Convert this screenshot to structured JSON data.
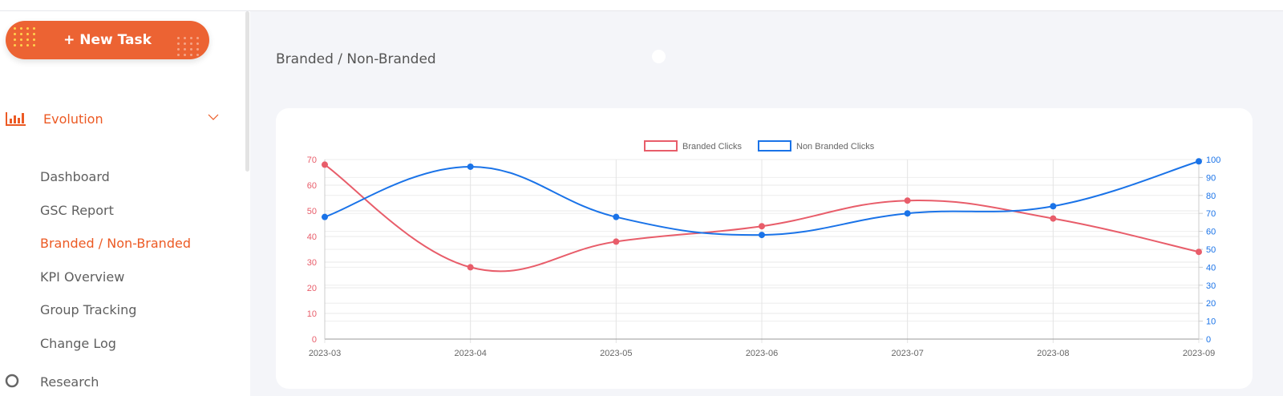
{
  "sidebar": {
    "new_task_label": "+ New Task",
    "section": {
      "label": "Evolution",
      "icon": "bar-chart-icon",
      "expanded": true
    },
    "items": [
      {
        "label": "Dashboard",
        "active": false
      },
      {
        "label": "GSC Report",
        "active": false
      },
      {
        "label": "Branded / Non-Branded",
        "active": true
      },
      {
        "label": "KPI Overview",
        "active": false
      },
      {
        "label": "Group Tracking",
        "active": false
      },
      {
        "label": "Change Log",
        "active": false
      }
    ],
    "next_section": {
      "label": "Research",
      "icon": "search-icon"
    }
  },
  "main": {
    "title": "Branded / Non-Branded"
  },
  "colors": {
    "accent": "#ec6333",
    "branded": "#e85d6a",
    "non_branded": "#1a73e8"
  },
  "chart_data": {
    "type": "line",
    "categories": [
      "2023-03",
      "2023-04",
      "2023-05",
      "2023-06",
      "2023-07",
      "2023-08",
      "2023-09"
    ],
    "series": [
      {
        "name": "Branded Clicks",
        "axis": "left",
        "color": "#e85d6a",
        "values": [
          68,
          28,
          38,
          44,
          54,
          47,
          34
        ]
      },
      {
        "name": "Non Branded Clicks",
        "axis": "right",
        "color": "#1a73e8",
        "values": [
          68,
          96,
          68,
          58,
          70,
          74,
          99
        ]
      }
    ],
    "y_left": {
      "range": [
        0,
        70
      ],
      "ticks": [
        0,
        10,
        20,
        30,
        40,
        50,
        60,
        70
      ]
    },
    "y_right": {
      "range": [
        0,
        100
      ],
      "ticks": [
        0,
        10,
        20,
        30,
        40,
        50,
        60,
        70,
        80,
        90,
        100
      ]
    },
    "legend": "top-center",
    "grid": true
  }
}
